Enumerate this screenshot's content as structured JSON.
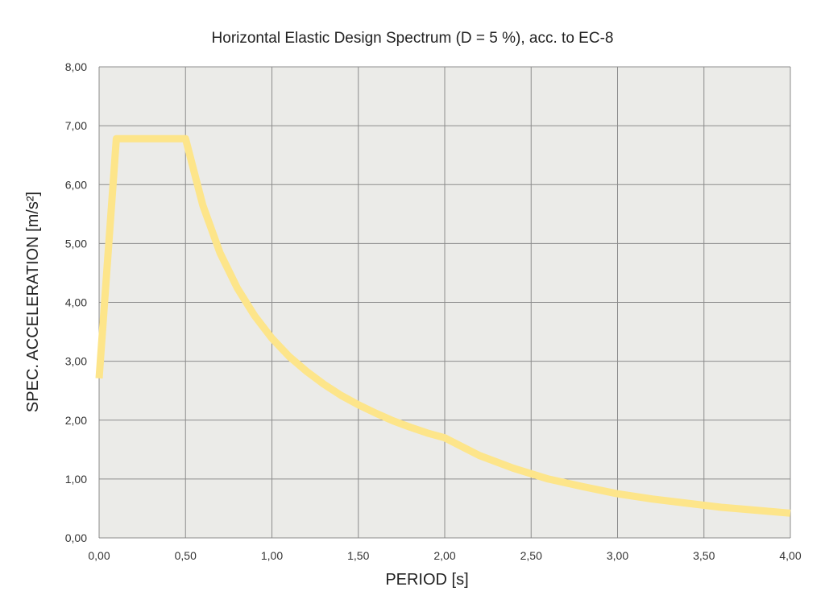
{
  "chart_data": {
    "type": "line",
    "title": "Horizontal Elastic Design Spectrum (D = 5 %), acc. to EC-8",
    "xlabel": "PERIOD [s]",
    "ylabel": "SPEC. ACCELERATION [m/s²]",
    "xlim": [
      0,
      4
    ],
    "ylim": [
      0,
      8
    ],
    "grid": true,
    "x_ticks": [
      "0,00",
      "0,50",
      "1,00",
      "1,50",
      "2,00",
      "2,50",
      "3,00",
      "3,50",
      "4,00"
    ],
    "y_ticks": [
      "0,00",
      "1,00",
      "2,00",
      "3,00",
      "4,00",
      "5,00",
      "6,00",
      "7,00",
      "8,00"
    ],
    "series": [
      {
        "color": "#fde58a",
        "x": [
          0.0,
          0.1,
          0.5,
          0.6,
          0.7,
          0.8,
          0.9,
          1.0,
          1.1,
          1.2,
          1.3,
          1.4,
          1.5,
          1.6,
          1.7,
          1.8,
          1.9,
          2.0,
          2.2,
          2.4,
          2.6,
          2.8,
          3.0,
          3.2,
          3.4,
          3.6,
          3.8,
          4.0
        ],
        "y": [
          2.71,
          6.78,
          6.78,
          5.65,
          4.84,
          4.24,
          3.77,
          3.39,
          3.08,
          2.83,
          2.61,
          2.42,
          2.26,
          2.12,
          1.99,
          1.88,
          1.78,
          1.7,
          1.4,
          1.18,
          1.0,
          0.87,
          0.75,
          0.66,
          0.59,
          0.52,
          0.47,
          0.42
        ]
      }
    ]
  },
  "colors": {
    "plot_background": "#ebebe8",
    "grid": "#8c8c8c",
    "line": "#fde58a"
  }
}
